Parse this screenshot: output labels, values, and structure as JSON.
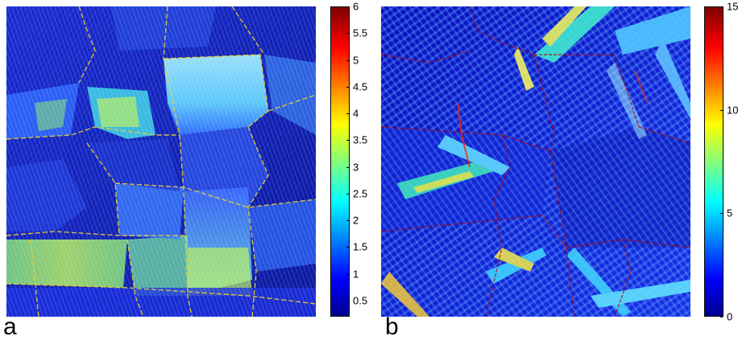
{
  "panels": [
    {
      "label": "a",
      "colorbar": {
        "min": 0.2,
        "max": 6,
        "tick_labels": [
          "6",
          "5.5",
          "5",
          "4.5",
          "4",
          "3.5",
          "3",
          "2.5",
          "2",
          "1.5",
          "1",
          "0.5"
        ],
        "colormap": "jet"
      }
    },
    {
      "label": "b",
      "colorbar": {
        "min": 0,
        "max": 15,
        "tick_labels": [
          "15",
          "10",
          "5",
          "0"
        ],
        "colormap": "jet"
      }
    }
  ],
  "colors": {
    "jet_dark_blue": "#00008f",
    "jet_blue": "#0000ff",
    "jet_cyan": "#00ffff",
    "jet_yellow": "#ffff00",
    "jet_red": "#ff0000",
    "jet_dark_red": "#800000"
  }
}
